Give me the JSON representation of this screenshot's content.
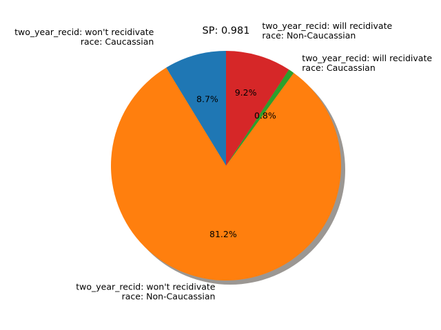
{
  "chart_data": {
    "type": "pie",
    "title": "SP: 0.981",
    "shadow": true,
    "start_angle_deg": 90,
    "direction": "counterclockwise",
    "slices": [
      {
        "label_lines": [
          "two_year_recid: won't recidivate",
          "race: Caucassian"
        ],
        "value": 8.7,
        "pct_label": "8.7%",
        "color": "#1f77b4"
      },
      {
        "label_lines": [
          "two_year_recid: won't recidivate",
          "race: Non-Caucassian"
        ],
        "value": 81.2,
        "pct_label": "81.2%",
        "color": "#ff7f0e"
      },
      {
        "label_lines": [
          "two_year_recid: will recidivate",
          "race: Caucassian"
        ],
        "value": 0.8,
        "pct_label": "0.8%",
        "color": "#2ca02c"
      },
      {
        "label_lines": [
          "two_year_recid: will recidivate",
          "race: Non-Caucassian"
        ],
        "value": 9.2,
        "pct_label": "9.2%",
        "color": "#d62728"
      }
    ]
  }
}
